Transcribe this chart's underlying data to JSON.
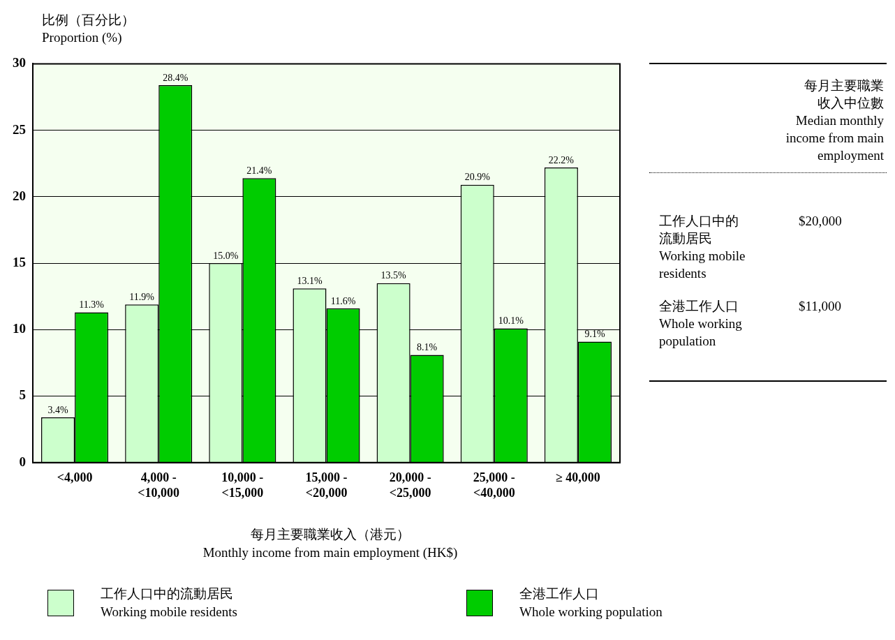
{
  "chart_data": [
    {
      "type": "bar",
      "ylabel": "比例（百分比）\nProportion (%)",
      "xlabel": "每月主要職業收入（港元）\nMonthly income from main employment (HK$)",
      "categories": [
        "<4,000",
        "4,000 -\n<10,000",
        "10,000 -\n<15,000",
        "15,000 -\n<20,000",
        "20,000 -\n<25,000",
        "25,000 -\n<40,000",
        "≥ 40,000"
      ],
      "series": [
        {
          "name": "工作人口中的流動居民\nWorking mobile residents",
          "color": "#ccffcc",
          "values": [
            3.4,
            11.9,
            15.0,
            13.1,
            13.5,
            20.9,
            22.2
          ],
          "value_labels": [
            "3.4%",
            "11.9%",
            "15.0%",
            "13.1%",
            "13.5%",
            "20.9%",
            "22.2%"
          ]
        },
        {
          "name": "全港工作人口\nWhole working population",
          "color": "#00cc00",
          "values": [
            11.3,
            28.4,
            21.4,
            11.6,
            8.1,
            10.1,
            9.1
          ],
          "value_labels": [
            "11.3%",
            "28.4%",
            "21.4%",
            "11.6%",
            "8.1%",
            "10.1%",
            "9.1%"
          ]
        }
      ],
      "ylim": [
        0,
        30
      ],
      "yticks": [
        0,
        5,
        10,
        15,
        20,
        25,
        30
      ],
      "grid": "y",
      "legend": "bottom"
    },
    {
      "type": "other",
      "title": "每月主要職業收入中位數\nMedian monthly income from main employment",
      "annotations": [
        "工作人口中的流動居民\nWorking mobile residents",
        "$20,000",
        "全港工作人口\nWhole working\npopulation",
        "$11,000"
      ]
    }
  ]
}
